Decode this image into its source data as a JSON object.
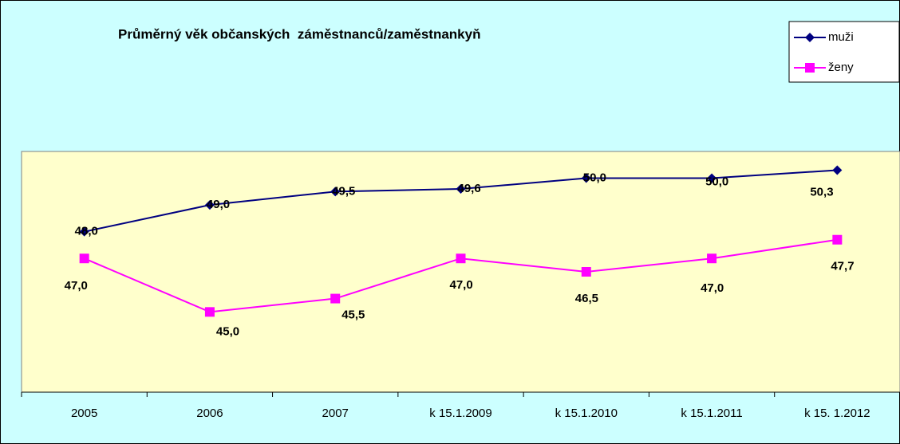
{
  "chart_data": {
    "type": "line",
    "title": "Průměrný věk občanských  záměstnanců/zaměstnankyň",
    "categories": [
      "2005",
      "2006",
      "2007",
      "k 15.1.2009",
      "k 15.1.2010",
      "k 15.1.2011",
      "k 15. 1.2012"
    ],
    "series": [
      {
        "name": "muži",
        "color": "#000080",
        "values": [
          48.0,
          49.0,
          49.5,
          49.6,
          50.0,
          50.0,
          50.3
        ],
        "value_labels": [
          "48,0",
          "49,0",
          "49,5",
          "49,6",
          "50,0",
          "50,0",
          "50,3"
        ]
      },
      {
        "name": "ženy",
        "color": "#ff00ff",
        "values": [
          47.0,
          45.0,
          45.5,
          47.0,
          46.5,
          47.0,
          47.7
        ],
        "value_labels": [
          "47,0",
          "45,0",
          "45,5",
          "47,0",
          "46,5",
          "47,0",
          "47,7"
        ]
      }
    ],
    "ylim": [
      42,
      51
    ]
  }
}
